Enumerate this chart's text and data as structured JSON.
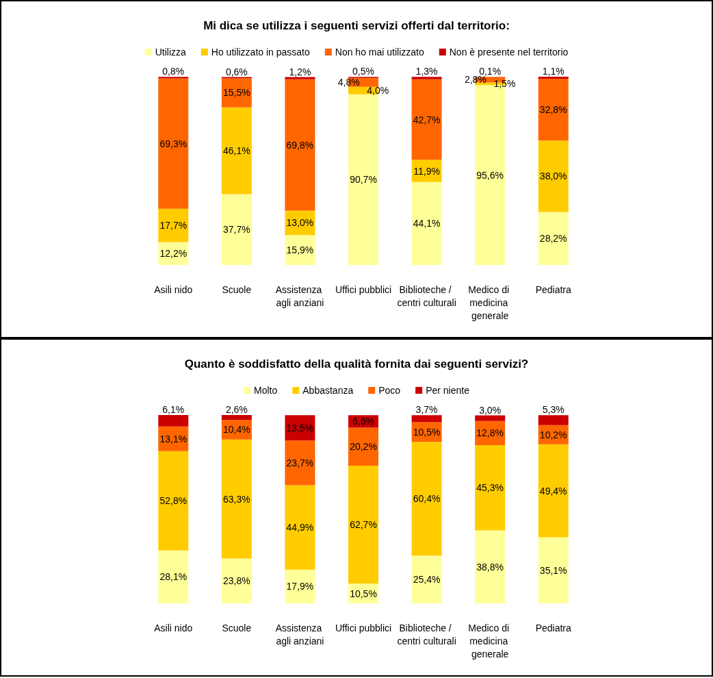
{
  "chart_data": [
    {
      "type": "bar",
      "stacked": true,
      "title": "Mi dica se utilizza i seguenti servizi offerti dal territorio:",
      "legend": "top",
      "categories": [
        "Asili nido",
        "Scuole",
        "Assistenza agli anziani",
        "Uffici pubblici",
        "Biblioteche / centri culturali",
        "Medico di medicina generale",
        "Pediatra"
      ],
      "series": [
        {
          "name": "Utilizza",
          "color": "#ffff99",
          "values": [
            12.2,
            37.7,
            15.9,
            90.7,
            44.1,
            95.6,
            28.2
          ],
          "value_labels": [
            "12,2%",
            "37,7%",
            "15,9%",
            "90,7%",
            "44,1%",
            "95,6%",
            "28,2%"
          ]
        },
        {
          "name": "Ho utilizzato in passato",
          "color": "#ffcc00",
          "values": [
            17.7,
            46.1,
            13.0,
            4.0,
            11.9,
            1.5,
            38.0
          ],
          "value_labels": [
            "17,7%",
            "46,1%",
            "13,0%",
            "4,0%",
            "11,9%",
            "1,5%",
            "38,0%"
          ]
        },
        {
          "name": "Non ho mai utilizzato",
          "color": "#ff6600",
          "values": [
            69.3,
            15.5,
            69.8,
            4.8,
            42.7,
            2.8,
            32.8
          ],
          "value_labels": [
            "69,3%",
            "15,5%",
            "69,8%",
            "4,8%",
            "42,7%",
            "2,8%",
            "32,8%"
          ]
        },
        {
          "name": "Non è presente nel territorio",
          "color": "#cc0000",
          "values": [
            0.8,
            0.6,
            1.2,
            0.5,
            1.3,
            0.1,
            1.1
          ],
          "value_labels": [
            "0,8%",
            "0,6%",
            "1,2%",
            "0,5%",
            "1,3%",
            "0,1%",
            "1,1%"
          ]
        }
      ]
    },
    {
      "type": "bar",
      "stacked": true,
      "title": "Quanto è soddisfatto della qualità fornita dai seguenti servizi?",
      "legend": "top",
      "categories": [
        "Asili nido",
        "Scuole",
        "Assistenza agli anziani",
        "Uffici pubblici",
        "Biblioteche / centri culturali",
        "Medico di medicina generale",
        "Pediatra"
      ],
      "series": [
        {
          "name": "Molto",
          "color": "#ffff99",
          "values": [
            28.1,
            23.8,
            17.9,
            10.5,
            25.4,
            38.8,
            35.1
          ],
          "value_labels": [
            "28,1%",
            "23,8%",
            "17,9%",
            "10,5%",
            "25,4%",
            "38,8%",
            "35,1%"
          ]
        },
        {
          "name": "Abbastanza",
          "color": "#ffcc00",
          "values": [
            52.8,
            63.3,
            44.9,
            62.7,
            60.4,
            45.3,
            49.4
          ],
          "value_labels": [
            "52,8%",
            "63,3%",
            "44,9%",
            "62,7%",
            "60,4%",
            "45,3%",
            "49,4%"
          ]
        },
        {
          "name": "Poco",
          "color": "#ff6600",
          "values": [
            13.1,
            10.4,
            23.7,
            20.2,
            10.5,
            12.8,
            10.2
          ],
          "value_labels": [
            "13,1%",
            "10,4%",
            "23,7%",
            "20,2%",
            "10,5%",
            "12,8%",
            "10,2%"
          ]
        },
        {
          "name": "Per niente",
          "color": "#cc0000",
          "values": [
            6.1,
            2.6,
            13.5,
            6.6,
            3.7,
            3.0,
            5.3
          ],
          "value_labels": [
            "6,1%",
            "2,6%",
            "13,5%",
            "6,6%",
            "3,7%",
            "3,0%",
            "5,3%"
          ]
        }
      ]
    }
  ]
}
